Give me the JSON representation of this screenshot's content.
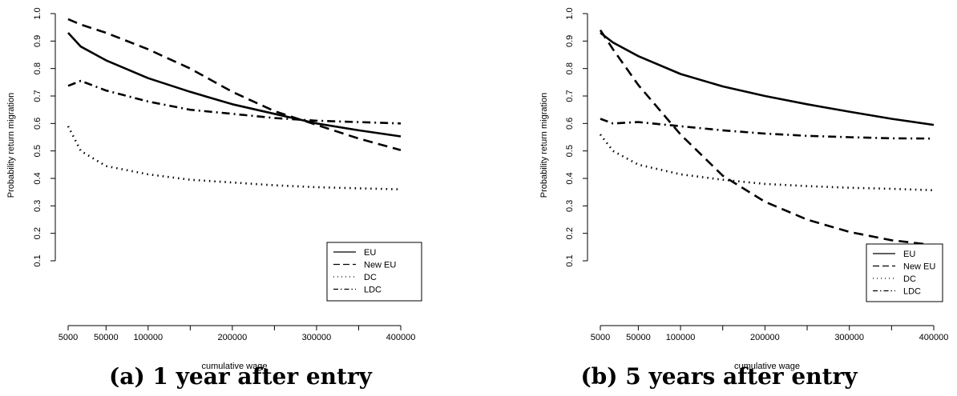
{
  "chart_data": [
    {
      "type": "line",
      "ylabel": "Probability return migration",
      "xlabel": "cumulative wage",
      "caption": "(a) 1 year after entry",
      "xlim": [
        5000,
        400000
      ],
      "ylim": [
        0.1,
        1.0
      ],
      "xticks": [
        5000,
        50000,
        100000,
        200000,
        300000,
        400000
      ],
      "x_tick_labels": [
        "5000",
        "50000",
        "100000",
        "200000",
        "300000",
        "400000"
      ],
      "minor_xticks": [
        150000,
        250000,
        350000
      ],
      "yticks": [
        0.1,
        0.2,
        0.3,
        0.4,
        0.5,
        0.6,
        0.7,
        0.8,
        0.9,
        1.0
      ],
      "y_tick_labels": [
        "0.1",
        "0.2",
        "0.3",
        "0.4",
        "0.5",
        "0.6",
        "0.7",
        "0.8",
        "0.9",
        "1.0"
      ],
      "legend_position": "bottom-right",
      "x": [
        5000,
        20000,
        50000,
        100000,
        150000,
        200000,
        250000,
        300000,
        350000,
        400000
      ],
      "series": [
        {
          "name": "EU",
          "line_style": "solid",
          "values": [
            0.93,
            0.88,
            0.83,
            0.765,
            0.715,
            0.67,
            0.635,
            0.6,
            0.575,
            0.553
          ]
        },
        {
          "name": "New EU",
          "line_style": "dashed",
          "values": [
            0.98,
            0.96,
            0.93,
            0.87,
            0.8,
            0.715,
            0.645,
            0.595,
            0.545,
            0.503
          ]
        },
        {
          "name": "DC",
          "line_style": "dotted",
          "values": [
            0.59,
            0.5,
            0.445,
            0.415,
            0.395,
            0.385,
            0.375,
            0.368,
            0.364,
            0.36
          ]
        },
        {
          "name": "LDC",
          "line_style": "dotdash",
          "values": [
            0.737,
            0.755,
            0.72,
            0.68,
            0.65,
            0.635,
            0.62,
            0.61,
            0.605,
            0.6
          ]
        }
      ]
    },
    {
      "type": "line",
      "ylabel": "Probability return migration",
      "xlabel": "cumulative wage",
      "caption": "(b) 5 years after entry",
      "xlim": [
        5000,
        400000
      ],
      "ylim": [
        0.1,
        1.0
      ],
      "xticks": [
        5000,
        50000,
        100000,
        200000,
        300000,
        400000
      ],
      "x_tick_labels": [
        "5000",
        "50000",
        "100000",
        "200000",
        "300000",
        "400000"
      ],
      "minor_xticks": [
        150000,
        250000,
        350000
      ],
      "yticks": [
        0.1,
        0.2,
        0.3,
        0.4,
        0.5,
        0.6,
        0.7,
        0.8,
        0.9,
        1.0
      ],
      "y_tick_labels": [
        "0.1",
        "0.2",
        "0.3",
        "0.4",
        "0.5",
        "0.6",
        "0.7",
        "0.8",
        "0.9",
        "1.0"
      ],
      "legend_position": "bottom-right",
      "x": [
        5000,
        20000,
        50000,
        100000,
        150000,
        200000,
        250000,
        300000,
        350000,
        400000
      ],
      "series": [
        {
          "name": "EU",
          "line_style": "solid",
          "values": [
            0.93,
            0.895,
            0.845,
            0.78,
            0.735,
            0.7,
            0.67,
            0.643,
            0.617,
            0.595
          ]
        },
        {
          "name": "New EU",
          "line_style": "dashed",
          "values": [
            0.94,
            0.87,
            0.74,
            0.56,
            0.41,
            0.315,
            0.25,
            0.205,
            0.175,
            0.157
          ]
        },
        {
          "name": "DC",
          "line_style": "dotted",
          "values": [
            0.56,
            0.5,
            0.45,
            0.415,
            0.395,
            0.38,
            0.372,
            0.366,
            0.362,
            0.357
          ]
        },
        {
          "name": "LDC",
          "line_style": "dotdash",
          "values": [
            0.617,
            0.6,
            0.605,
            0.59,
            0.575,
            0.563,
            0.555,
            0.55,
            0.546,
            0.545
          ]
        }
      ]
    }
  ]
}
